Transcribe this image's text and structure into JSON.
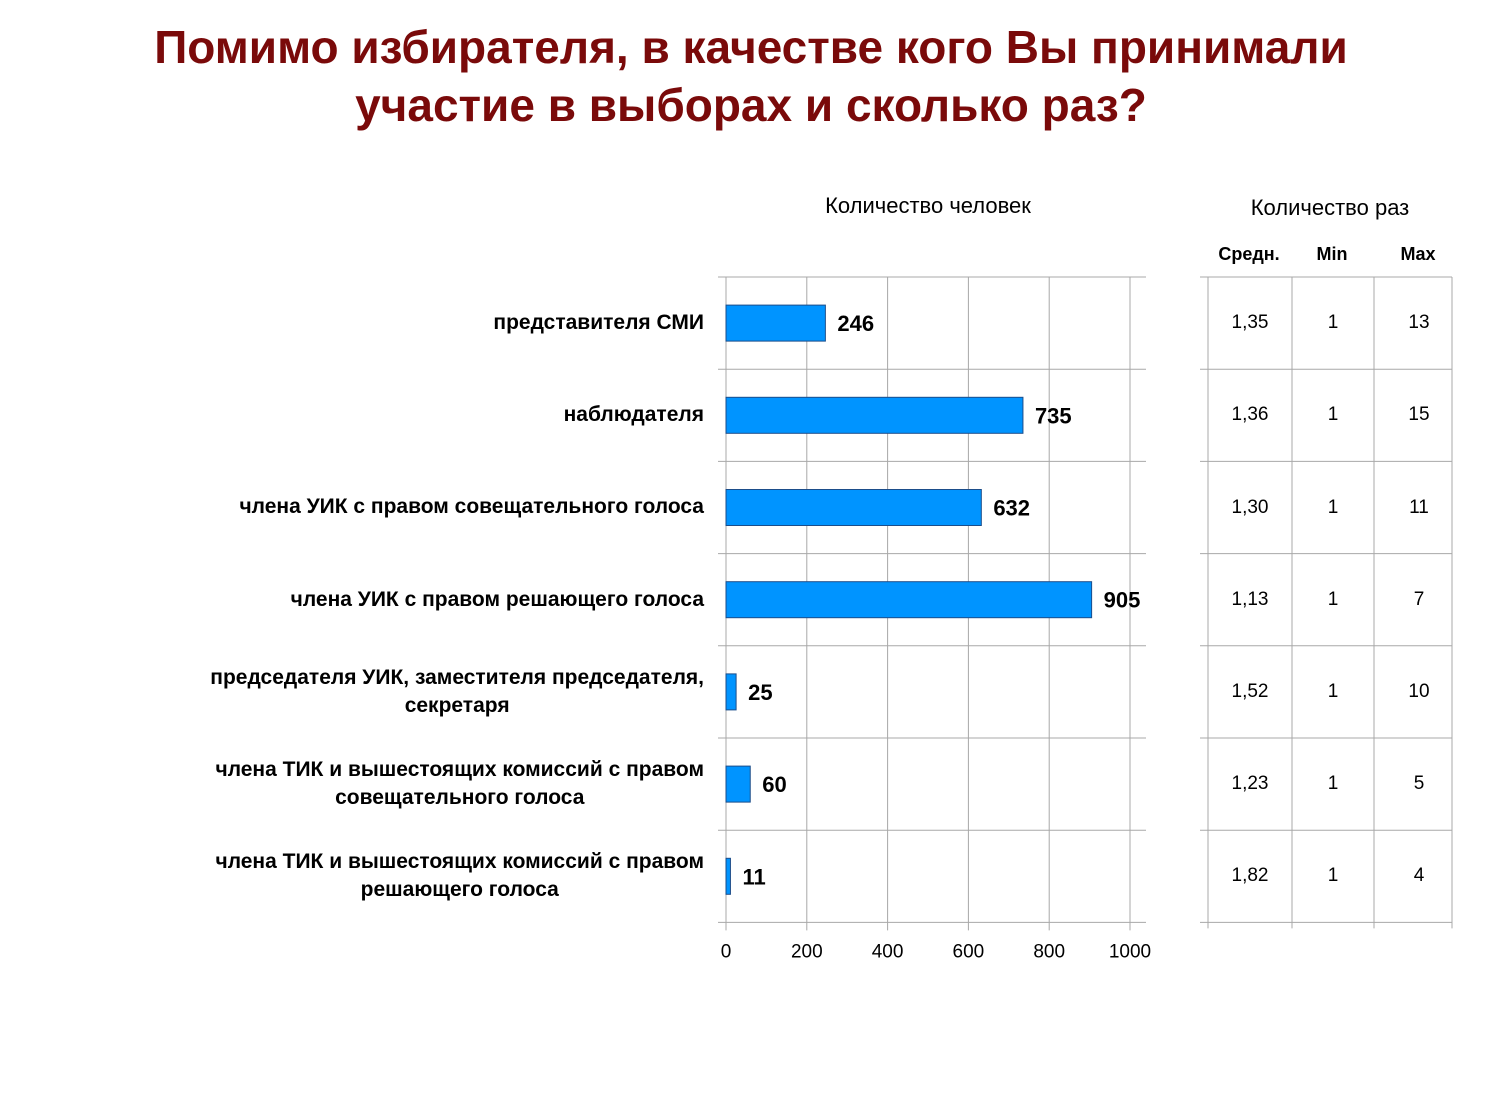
{
  "title_lines": [
    "Помимо избирателя, в качестве кого Вы принимали",
    "участие в выборах и сколько раз?"
  ],
  "chart_data": {
    "type": "bar",
    "orientation": "horizontal",
    "title": "Помимо избирателя, в качестве кого Вы принимали участие в выборах и сколько раз?",
    "chart_heading": "Количество человек",
    "categories": [
      [
        "представителя СМИ"
      ],
      [
        "наблюдателя"
      ],
      [
        "члена УИК с правом  совещательного голоса"
      ],
      [
        "члена УИК с правом  решающего голоса"
      ],
      [
        "председателя УИК,  заместителя  председателя,",
        "секретаря"
      ],
      [
        "члена ТИК и  вышестоящих комиссий с  правом",
        "совещательного  голоса"
      ],
      [
        "члена ТИК и  вышестоящих комиссий с  правом",
        "решающего  голоса"
      ]
    ],
    "values": [
      246,
      735,
      632,
      905,
      25,
      60,
      11
    ],
    "x_ticks": [
      "0",
      "200",
      "400",
      "600",
      "800",
      "1000"
    ],
    "xlim": [
      0,
      1000
    ],
    "bar_color": "#0094ff",
    "grid": true
  },
  "times_table": {
    "heading": "Количество раз",
    "columns": [
      "Средн.",
      "Min",
      "Max"
    ],
    "rows": [
      [
        "1,35",
        "1",
        "13"
      ],
      [
        "1,36",
        "1",
        "15"
      ],
      [
        "1,30",
        "1",
        "11"
      ],
      [
        "1,13",
        "1",
        "7"
      ],
      [
        "1,52",
        "1",
        "10"
      ],
      [
        "1,23",
        "1",
        "5"
      ],
      [
        "1,82",
        "1",
        "4"
      ]
    ]
  }
}
